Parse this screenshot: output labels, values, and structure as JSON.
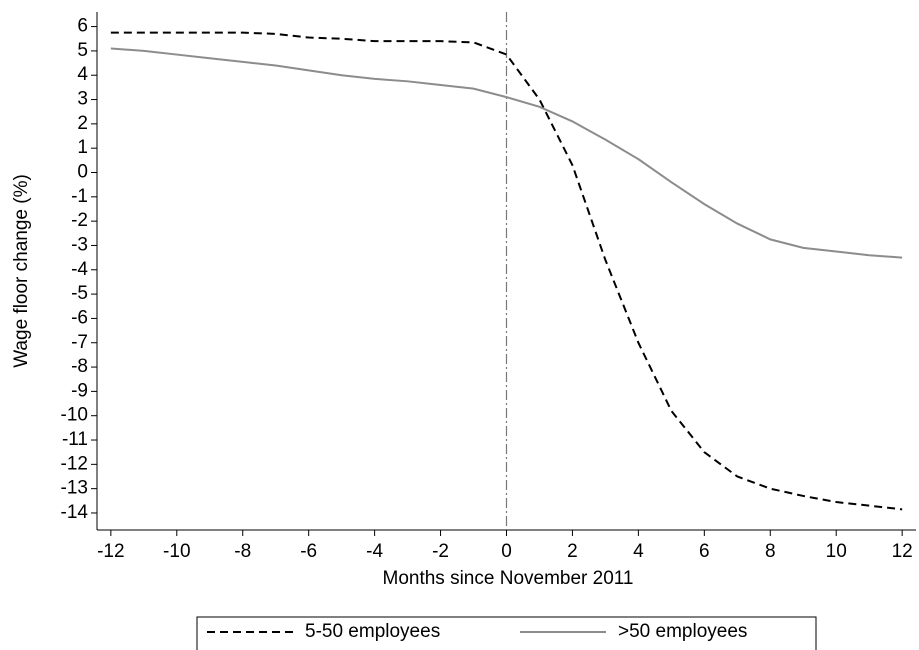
{
  "chart_data": {
    "type": "line",
    "xlabel": "Months since November 2011",
    "ylabel": "Wage floor change (%)",
    "x": [
      -12,
      -11,
      -10,
      -9,
      -8,
      -7,
      -6,
      -5,
      -4,
      -3,
      -2,
      -1,
      0,
      1,
      2,
      3,
      4,
      5,
      6,
      7,
      8,
      9,
      10,
      11,
      12
    ],
    "series": [
      {
        "name": "5-50 employees",
        "color": "#000000",
        "dash": "dashed",
        "values": [
          5.75,
          5.75,
          5.75,
          5.75,
          5.75,
          5.7,
          5.55,
          5.5,
          5.4,
          5.4,
          5.4,
          5.35,
          4.85,
          3.0,
          0.3,
          -3.6,
          -7.0,
          -9.8,
          -11.5,
          -12.5,
          -13.0,
          -13.3,
          -13.55,
          -13.7,
          -13.85
        ]
      },
      {
        "name": ">50 employees",
        "color": "#8c8c8c",
        "dash": "solid",
        "values": [
          5.1,
          5.0,
          4.85,
          4.7,
          4.55,
          4.4,
          4.2,
          4.0,
          3.85,
          3.75,
          3.6,
          3.45,
          3.1,
          2.7,
          2.1,
          1.35,
          0.55,
          -0.4,
          -1.3,
          -2.1,
          -2.75,
          -3.1,
          -3.25,
          -3.4,
          -3.5
        ]
      }
    ],
    "vline": 0,
    "xlim": [
      -12.42,
      12.42
    ],
    "xticks": [
      -12,
      -10,
      -8,
      -6,
      -4,
      -2,
      0,
      2,
      4,
      6,
      8,
      10,
      12
    ],
    "ylim": [
      -14.7,
      6.6
    ],
    "yticks": [
      -14,
      -13,
      -12,
      -11,
      -10,
      -9,
      -8,
      -7,
      -6,
      -5,
      -4,
      -3,
      -2,
      -1,
      0,
      1,
      2,
      3,
      4,
      5,
      6
    ],
    "legend": "bottom"
  }
}
